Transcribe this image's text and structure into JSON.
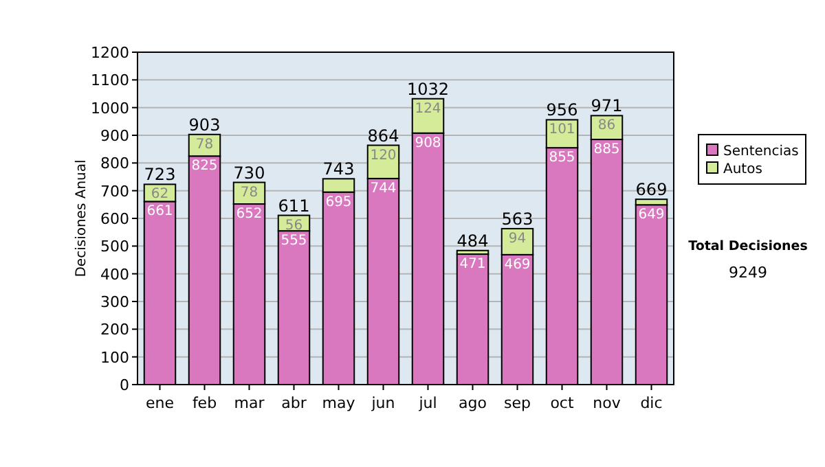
{
  "chart_data": {
    "type": "bar",
    "ylabel": "Decisiones Anual",
    "categories": [
      "ene",
      "feb",
      "mar",
      "abr",
      "may",
      "jun",
      "jul",
      "ago",
      "sep",
      "oct",
      "nov",
      "dic"
    ],
    "stacked": true,
    "series": [
      {
        "name": "Sentencias",
        "color": "#d977bf",
        "values": [
          661,
          825,
          652,
          555,
          695,
          744,
          908,
          471,
          469,
          855,
          885,
          649
        ],
        "value_labels": [
          "661",
          "825",
          "652",
          "555",
          "695",
          "744",
          "908",
          "471",
          "469",
          "855",
          "885",
          "649"
        ]
      },
      {
        "name": "Autos",
        "color": "#d4ec9a",
        "values": [
          62,
          78,
          78,
          56,
          48,
          120,
          124,
          13,
          94,
          101,
          86,
          20
        ],
        "value_labels": [
          "62",
          "78",
          "78",
          "56",
          null,
          "120",
          "124",
          null,
          "94",
          "101",
          "86",
          null
        ]
      }
    ],
    "totals": [
      "723",
      "903",
      "730",
      "611",
      "743",
      "864",
      "1032",
      "484",
      "563",
      "956",
      "971",
      "669"
    ],
    "ylim": [
      0,
      1200
    ],
    "yticks": [
      0,
      100,
      200,
      300,
      400,
      500,
      600,
      700,
      800,
      900,
      1000,
      1100,
      1200
    ],
    "grid": "y",
    "legend": "right",
    "annotations": [
      "Total Decisiones",
      "9249"
    ]
  }
}
